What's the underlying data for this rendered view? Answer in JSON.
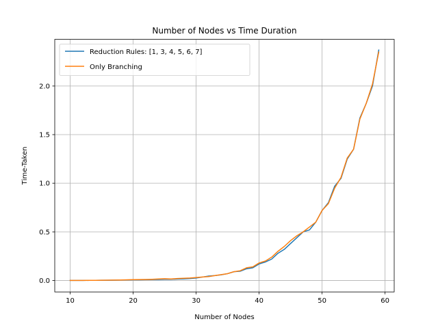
{
  "chart_data": {
    "type": "line",
    "title": "Number of Nodes vs Time Duration",
    "xlabel": "Number of Nodes",
    "ylabel": "Time-Taken",
    "xlim": [
      7.55,
      61.45
    ],
    "ylim": [
      -0.118,
      2.48
    ],
    "xticks": [
      10,
      20,
      30,
      40,
      50,
      60
    ],
    "yticks": [
      0.0,
      0.5,
      1.0,
      1.5,
      2.0
    ],
    "xtick_labels": [
      "10",
      "20",
      "30",
      "40",
      "50",
      "60"
    ],
    "ytick_labels": [
      "0.0",
      "0.5",
      "1.0",
      "1.5",
      "2.0"
    ],
    "grid": true,
    "legend_position": "upper-left",
    "x": [
      10,
      11,
      12,
      13,
      14,
      15,
      16,
      17,
      18,
      19,
      20,
      21,
      22,
      23,
      24,
      25,
      26,
      27,
      28,
      29,
      30,
      31,
      32,
      33,
      34,
      35,
      36,
      37,
      38,
      39,
      40,
      41,
      42,
      43,
      44,
      45,
      46,
      47,
      48,
      49,
      50,
      51,
      52,
      53,
      54,
      55,
      56,
      57,
      58,
      59
    ],
    "series": [
      {
        "name": "Reduction Rules: [1, 3, 4, 5, 6, 7]",
        "color": "#1f77b4",
        "values": [
          0.0,
          0.0,
          0.0,
          0.001,
          0.001,
          0.002,
          0.002,
          0.003,
          0.004,
          0.005,
          0.006,
          0.006,
          0.008,
          0.009,
          0.01,
          0.012,
          0.012,
          0.014,
          0.016,
          0.02,
          0.025,
          0.035,
          0.045,
          0.05,
          0.058,
          0.07,
          0.09,
          0.095,
          0.12,
          0.13,
          0.17,
          0.19,
          0.22,
          0.28,
          0.32,
          0.38,
          0.44,
          0.5,
          0.52,
          0.6,
          0.72,
          0.8,
          0.97,
          1.05,
          1.25,
          1.35,
          1.67,
          1.82,
          2.0,
          2.37
        ]
      },
      {
        "name": "Only Branching",
        "color": "#ff7f0e",
        "values": [
          0.0,
          0.0,
          0.0,
          0.001,
          0.001,
          0.002,
          0.003,
          0.004,
          0.005,
          0.006,
          0.008,
          0.009,
          0.01,
          0.012,
          0.015,
          0.018,
          0.015,
          0.02,
          0.022,
          0.025,
          0.03,
          0.035,
          0.04,
          0.05,
          0.06,
          0.07,
          0.09,
          0.1,
          0.13,
          0.14,
          0.18,
          0.2,
          0.24,
          0.3,
          0.35,
          0.41,
          0.46,
          0.5,
          0.55,
          0.6,
          0.72,
          0.79,
          0.95,
          1.06,
          1.26,
          1.35,
          1.66,
          1.82,
          2.02,
          2.35
        ]
      }
    ]
  }
}
